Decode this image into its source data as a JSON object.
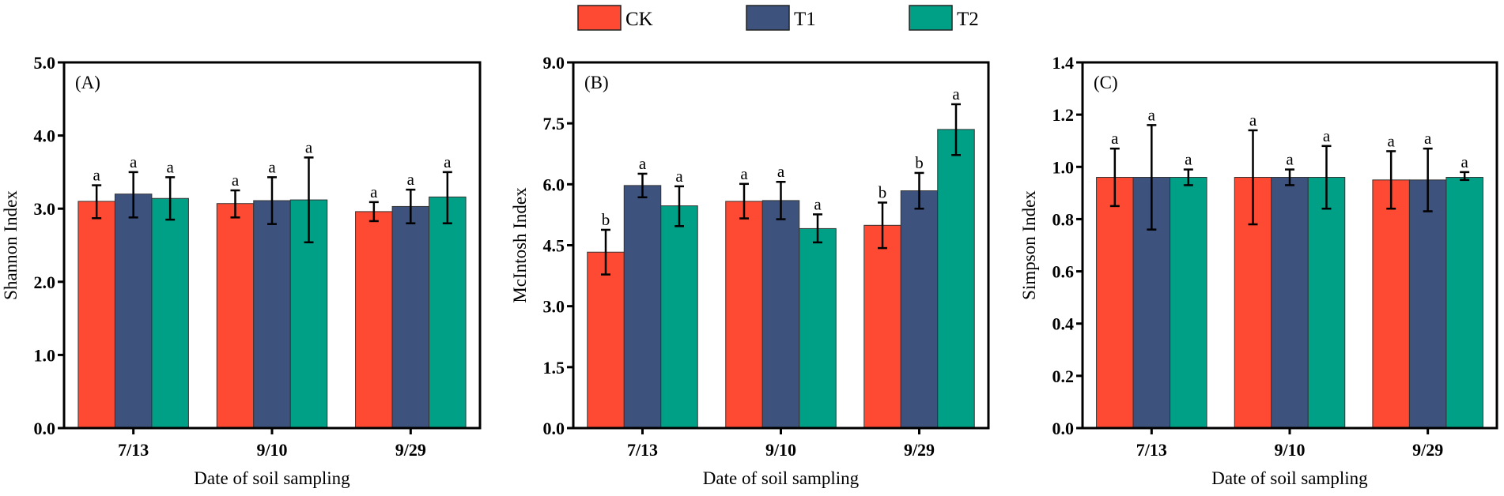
{
  "chart_data": {
    "type": "bar",
    "legend": {
      "placement": "top-center",
      "entries": [
        {
          "name": "CK",
          "color": "#FF4A33"
        },
        {
          "name": "T1",
          "color": "#3D527D"
        },
        {
          "name": "T2",
          "color": "#00A087"
        }
      ]
    },
    "panels": [
      {
        "panel_label": "(A)",
        "xlabel": "Date of soil sampling",
        "ylabel": "Shannon Index",
        "categories": [
          "7/13",
          "9/10",
          "9/29"
        ],
        "ylim": [
          0,
          5.0
        ],
        "yticks": [
          "0.0",
          "1.0",
          "2.0",
          "3.0",
          "4.0",
          "5.0"
        ],
        "series": [
          {
            "name": "CK",
            "values": [
              3.1,
              3.07,
              2.96
            ],
            "err_low": [
              2.87,
              2.88,
              2.83
            ],
            "err_high": [
              3.32,
              3.25,
              3.09
            ],
            "letters": [
              "a",
              "a",
              "a"
            ]
          },
          {
            "name": "T1",
            "values": [
              3.2,
              3.11,
              3.03
            ],
            "err_low": [
              2.88,
              2.79,
              2.8
            ],
            "err_high": [
              3.5,
              3.43,
              3.26
            ],
            "letters": [
              "a",
              "a",
              "a"
            ]
          },
          {
            "name": "T2",
            "values": [
              3.14,
              3.12,
              3.16
            ],
            "err_low": [
              2.85,
              2.54,
              2.8
            ],
            "err_high": [
              3.43,
              3.7,
              3.5
            ],
            "letters": [
              "a",
              "a",
              "a"
            ]
          }
        ]
      },
      {
        "panel_label": "(B)",
        "xlabel": "Date of soil sampling",
        "ylabel": "McIntosh Index",
        "categories": [
          "7/13",
          "9/10",
          "9/29"
        ],
        "ylim": [
          0,
          9.0
        ],
        "yticks": [
          "0.0",
          "1.5",
          "3.0",
          "4.5",
          "6.0",
          "7.5",
          "9.0"
        ],
        "series": [
          {
            "name": "CK",
            "values": [
              4.33,
              5.58,
              4.99
            ],
            "err_low": [
              3.78,
              5.16,
              4.43
            ],
            "err_high": [
              4.88,
              6.01,
              5.55
            ],
            "letters": [
              "b",
              "a",
              "b"
            ]
          },
          {
            "name": "T1",
            "values": [
              5.97,
              5.6,
              5.84
            ],
            "err_low": [
              5.68,
              5.14,
              5.4
            ],
            "err_high": [
              6.26,
              6.06,
              6.28
            ],
            "letters": [
              "a",
              "a",
              "b"
            ]
          },
          {
            "name": "T2",
            "values": [
              5.47,
              4.91,
              7.35
            ],
            "err_low": [
              4.97,
              4.57,
              6.72
            ],
            "err_high": [
              5.95,
              5.26,
              7.97
            ],
            "letters": [
              "a",
              "a",
              "a"
            ]
          }
        ]
      },
      {
        "panel_label": "(C)",
        "xlabel": "Date of soil sampling",
        "ylabel": "Simpson Index",
        "categories": [
          "7/13",
          "9/10",
          "9/29"
        ],
        "ylim": [
          0,
          1.4
        ],
        "yticks": [
          "0.0",
          "0.2",
          "0.4",
          "0.6",
          "0.8",
          "1.0",
          "1.2",
          "1.4"
        ],
        "series": [
          {
            "name": "CK",
            "values": [
              0.96,
              0.96,
              0.95
            ],
            "err_low": [
              0.85,
              0.78,
              0.84
            ],
            "err_high": [
              1.07,
              1.14,
              1.06
            ],
            "letters": [
              "a",
              "a",
              "a"
            ]
          },
          {
            "name": "T1",
            "values": [
              0.96,
              0.96,
              0.95
            ],
            "err_low": [
              0.76,
              0.93,
              0.83
            ],
            "err_high": [
              1.16,
              0.99,
              1.07
            ],
            "letters": [
              "a",
              "a",
              "a"
            ]
          },
          {
            "name": "T2",
            "values": [
              0.96,
              0.96,
              0.96
            ],
            "err_low": [
              0.93,
              0.84,
              0.95
            ],
            "err_high": [
              0.99,
              1.08,
              0.98
            ],
            "letters": [
              "a",
              "a",
              "a"
            ]
          }
        ]
      }
    ]
  }
}
